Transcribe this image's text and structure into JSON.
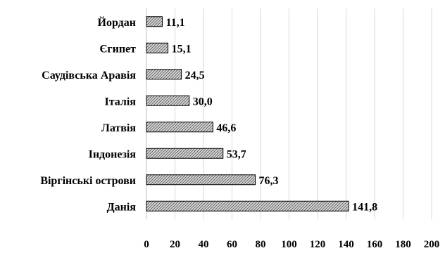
{
  "chart_data": {
    "type": "bar",
    "orientation": "horizontal",
    "categories": [
      "Йордан",
      "Єгипет",
      "Саудівська Аравія",
      "Італія",
      "Латвія",
      "Індонезія",
      "Віргінські острови",
      "Данія"
    ],
    "values": [
      11.1,
      15.1,
      24.5,
      30.0,
      46.6,
      53.7,
      76.3,
      141.8
    ],
    "value_labels": [
      "11,1",
      "15,1",
      "24,5",
      "30,0",
      "46,6",
      "53,7",
      "76,3",
      "141,8"
    ],
    "xlim": [
      0,
      200
    ],
    "x_ticks": [
      "0",
      "20",
      "40",
      "60",
      "80",
      "100",
      "120",
      "140",
      "160",
      "180",
      "200"
    ],
    "grid": "vertical",
    "legend": "none",
    "bar_fill": "#bdbdbd",
    "bar_stroke": "#000000",
    "grid_color": "#d9d9d9"
  }
}
